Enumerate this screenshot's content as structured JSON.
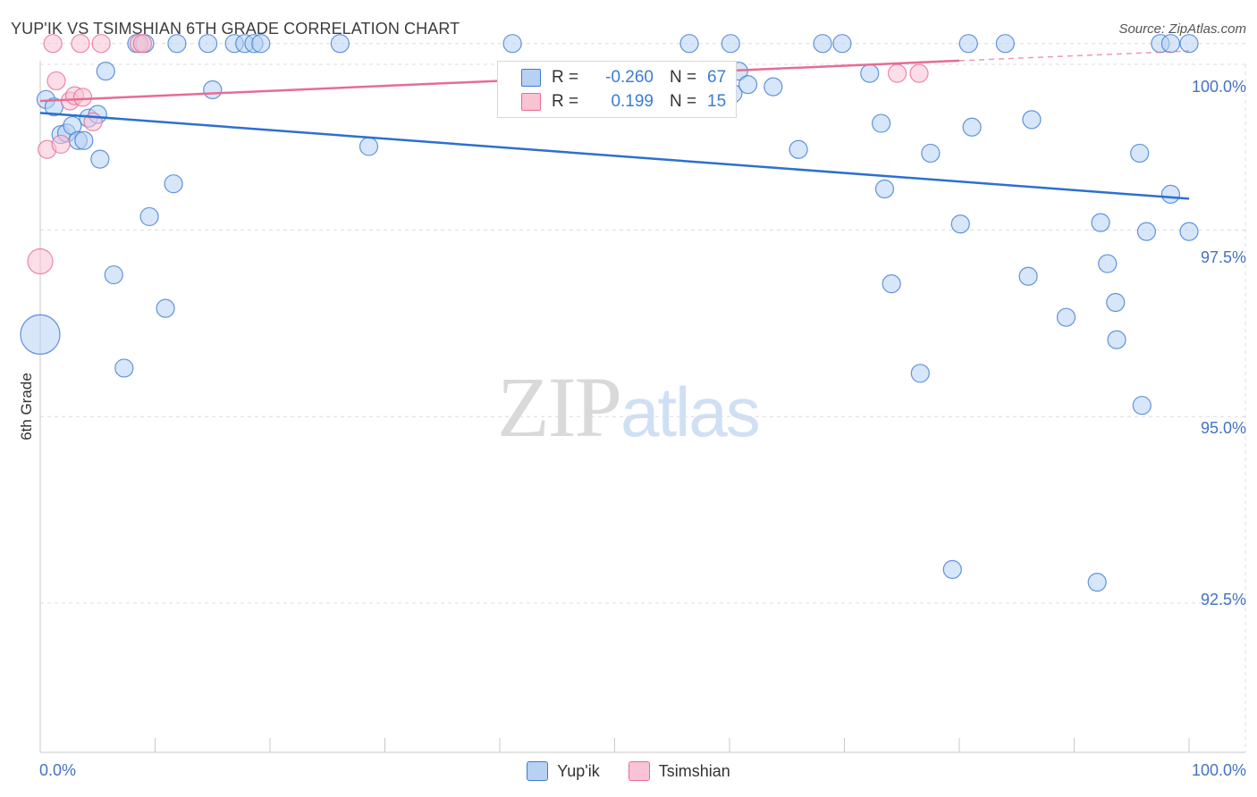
{
  "title": "YUP'IK VS TSIMSHIAN 6TH GRADE CORRELATION CHART",
  "source": "Source: ZipAtlas.com",
  "watermark": {
    "zip": "ZIP",
    "atlas": "atlas"
  },
  "colors": {
    "blue": "#3c7bd6",
    "blue_fill": "#b7d1f3",
    "blue_line": "#2e6fd0",
    "pink": "#e86b95",
    "pink_fill": "#f8c3d3",
    "grid": "#dcdcdc",
    "axis_label": "#4472c4"
  },
  "legend": {
    "rows": [
      {
        "series": "Yup'ik",
        "r_label": "R =",
        "r_value": "-0.260",
        "n_label": "N =",
        "n_value": "67"
      },
      {
        "series": "Tsimshian",
        "r_label": "R =",
        "r_value": "0.199",
        "n_label": "N =",
        "n_value": "15"
      }
    ]
  },
  "chart_data": {
    "type": "scatter",
    "title": "YUP'IK VS TSIMSHIAN 6TH GRADE CORRELATION CHART",
    "xlabel": "",
    "ylabel": "6th Grade",
    "xlim": [
      0,
      100
    ],
    "ylim": [
      90.5,
      100.2
    ],
    "x_tick_labels": [
      "0.0%",
      "100.0%"
    ],
    "y_ticks": [
      92.5,
      95.0,
      97.5,
      100.0
    ],
    "y_tick_labels": [
      "92.5%",
      "95.0%",
      "97.5%",
      "100.0%"
    ],
    "grid": true,
    "legend_position": "bottom-center",
    "series": [
      {
        "name": "Yup'ik",
        "trend": {
          "x0": 0,
          "y0": 99.07,
          "x1": 100,
          "y1": 97.92
        },
        "points": [
          {
            "x": 0.5,
            "y": 99.25,
            "s": 10
          },
          {
            "x": 1.2,
            "y": 99.15,
            "s": 10
          },
          {
            "x": 1.8,
            "y": 98.78,
            "s": 10
          },
          {
            "x": 2.3,
            "y": 98.8,
            "s": 10
          },
          {
            "x": 2.8,
            "y": 98.9,
            "s": 10
          },
          {
            "x": 3.3,
            "y": 98.7,
            "s": 10
          },
          {
            "x": 3.8,
            "y": 98.7,
            "s": 10
          },
          {
            "x": 4.2,
            "y": 99.0,
            "s": 10
          },
          {
            "x": 5.0,
            "y": 99.05,
            "s": 10
          },
          {
            "x": 5.2,
            "y": 98.45,
            "s": 10
          },
          {
            "x": 5.7,
            "y": 99.63,
            "s": 10
          },
          {
            "x": 6.4,
            "y": 96.9,
            "s": 10
          },
          {
            "x": 7.3,
            "y": 95.65,
            "s": 10
          },
          {
            "x": 8.4,
            "y": 100.0,
            "s": 10
          },
          {
            "x": 9.1,
            "y": 100.0,
            "s": 10
          },
          {
            "x": 9.5,
            "y": 97.68,
            "s": 10
          },
          {
            "x": 10.9,
            "y": 96.45,
            "s": 10
          },
          {
            "x": 11.6,
            "y": 98.12,
            "s": 10
          },
          {
            "x": 11.9,
            "y": 100.0,
            "s": 10
          },
          {
            "x": 14.6,
            "y": 100.0,
            "s": 10
          },
          {
            "x": 15.0,
            "y": 99.38,
            "s": 10
          },
          {
            "x": 16.9,
            "y": 100.0,
            "s": 10
          },
          {
            "x": 17.8,
            "y": 100.0,
            "s": 10
          },
          {
            "x": 18.6,
            "y": 100.0,
            "s": 10
          },
          {
            "x": 19.2,
            "y": 100.0,
            "s": 10
          },
          {
            "x": 26.1,
            "y": 100.0,
            "s": 10
          },
          {
            "x": 28.6,
            "y": 98.62,
            "s": 10
          },
          {
            "x": 41.1,
            "y": 100.0,
            "s": 10
          },
          {
            "x": 56.5,
            "y": 100.0,
            "s": 10
          },
          {
            "x": 60.1,
            "y": 100.0,
            "s": 10
          },
          {
            "x": 60.3,
            "y": 99.33,
            "s": 10
          },
          {
            "x": 60.8,
            "y": 99.63,
            "s": 10
          },
          {
            "x": 61.6,
            "y": 99.45,
            "s": 10
          },
          {
            "x": 63.8,
            "y": 99.42,
            "s": 10
          },
          {
            "x": 66.0,
            "y": 98.58,
            "s": 10
          },
          {
            "x": 68.1,
            "y": 100.0,
            "s": 10
          },
          {
            "x": 69.8,
            "y": 100.0,
            "s": 10
          },
          {
            "x": 72.2,
            "y": 99.6,
            "s": 10
          },
          {
            "x": 73.2,
            "y": 98.93,
            "s": 10
          },
          {
            "x": 73.5,
            "y": 98.05,
            "s": 10
          },
          {
            "x": 74.1,
            "y": 96.78,
            "s": 10
          },
          {
            "x": 76.6,
            "y": 95.58,
            "s": 10
          },
          {
            "x": 77.5,
            "y": 98.53,
            "s": 10
          },
          {
            "x": 79.4,
            "y": 92.95,
            "s": 10
          },
          {
            "x": 80.1,
            "y": 97.58,
            "s": 10
          },
          {
            "x": 80.8,
            "y": 100.0,
            "s": 10
          },
          {
            "x": 81.1,
            "y": 98.88,
            "s": 10
          },
          {
            "x": 84.0,
            "y": 100.0,
            "s": 10
          },
          {
            "x": 86.0,
            "y": 96.88,
            "s": 10
          },
          {
            "x": 86.3,
            "y": 98.98,
            "s": 10
          },
          {
            "x": 89.3,
            "y": 96.33,
            "s": 10
          },
          {
            "x": 92.0,
            "y": 92.78,
            "s": 10
          },
          {
            "x": 92.3,
            "y": 97.6,
            "s": 10
          },
          {
            "x": 92.9,
            "y": 97.05,
            "s": 10
          },
          {
            "x": 93.6,
            "y": 96.53,
            "s": 10
          },
          {
            "x": 93.7,
            "y": 96.03,
            "s": 10
          },
          {
            "x": 95.7,
            "y": 98.53,
            "s": 10
          },
          {
            "x": 95.9,
            "y": 95.15,
            "s": 10
          },
          {
            "x": 96.3,
            "y": 97.48,
            "s": 10
          },
          {
            "x": 97.5,
            "y": 100.0,
            "s": 10
          },
          {
            "x": 98.4,
            "y": 100.0,
            "s": 10
          },
          {
            "x": 98.4,
            "y": 97.98,
            "s": 10
          },
          {
            "x": 100.0,
            "y": 100.0,
            "s": 10
          },
          {
            "x": 100.0,
            "y": 97.48,
            "s": 10
          },
          {
            "x": 0.0,
            "y": 96.1,
            "s": 22
          }
        ]
      },
      {
        "name": "Tsimshian",
        "trend": {
          "x0": 0,
          "y0": 99.23,
          "x1": 80,
          "y1": 99.77,
          "x_dash_end": 100,
          "y_dash_end": 99.9
        },
        "points": [
          {
            "x": 0.6,
            "y": 98.58,
            "s": 10
          },
          {
            "x": 1.1,
            "y": 100.0,
            "s": 10
          },
          {
            "x": 1.4,
            "y": 99.5,
            "s": 10
          },
          {
            "x": 1.8,
            "y": 98.65,
            "s": 10
          },
          {
            "x": 2.6,
            "y": 99.23,
            "s": 10
          },
          {
            "x": 3.0,
            "y": 99.3,
            "s": 10
          },
          {
            "x": 3.5,
            "y": 100.0,
            "s": 10
          },
          {
            "x": 3.7,
            "y": 99.28,
            "s": 10
          },
          {
            "x": 4.6,
            "y": 98.95,
            "s": 10
          },
          {
            "x": 5.3,
            "y": 100.0,
            "s": 10
          },
          {
            "x": 8.6,
            "y": 100.0,
            "s": 10
          },
          {
            "x": 8.9,
            "y": 100.0,
            "s": 10
          },
          {
            "x": 74.6,
            "y": 99.6,
            "s": 10
          },
          {
            "x": 76.5,
            "y": 99.6,
            "s": 10
          },
          {
            "x": 0.0,
            "y": 97.08,
            "s": 14
          }
        ]
      }
    ]
  }
}
